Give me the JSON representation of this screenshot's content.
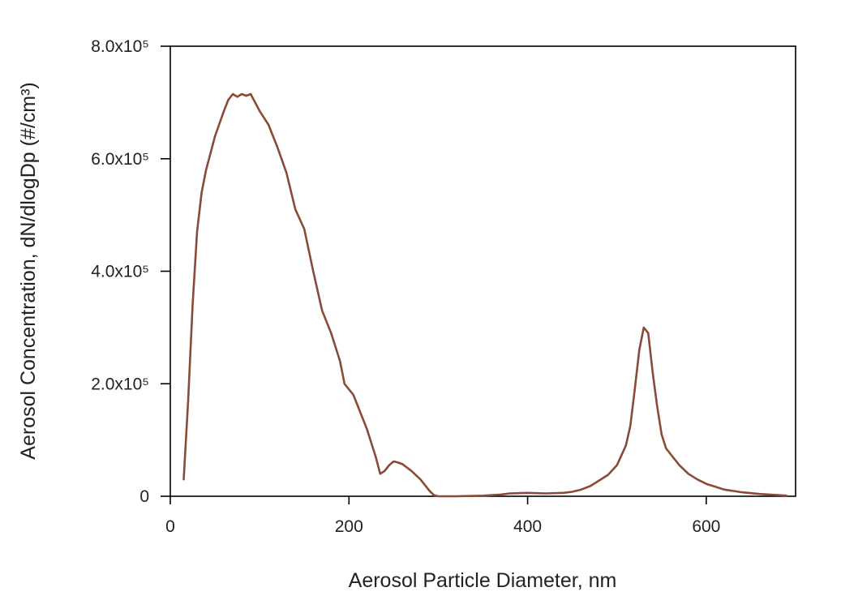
{
  "chart_data": {
    "type": "line",
    "title": "",
    "xlabel": "Aerosol Particle Diameter, nm",
    "ylabel": "Aerosol Concentration, dN/dlogDp (#/cm³)",
    "xlim": [
      0,
      700
    ],
    "ylim": [
      0,
      800000
    ],
    "x_ticks": [
      {
        "value": 0,
        "label": "0"
      },
      {
        "value": 200,
        "label": "200"
      },
      {
        "value": 400,
        "label": "400"
      },
      {
        "value": 600,
        "label": "600"
      }
    ],
    "y_ticks": [
      {
        "value": 0,
        "label": "0"
      },
      {
        "value": 200000,
        "label": "2.0x10⁵"
      },
      {
        "value": 400000,
        "label": "4.0x10⁵"
      },
      {
        "value": 600000,
        "label": "6.0x10⁵"
      },
      {
        "value": 800000,
        "label": "8.0x10⁵"
      }
    ],
    "grid": false,
    "legend": "none",
    "colors": {
      "series": "#8a4a38"
    },
    "series": [
      {
        "x": [
          15,
          20,
          25,
          30,
          35,
          40,
          50,
          60,
          65,
          70,
          75,
          80,
          85,
          90,
          95,
          100,
          110,
          120,
          130,
          140,
          150,
          160,
          170,
          180,
          190,
          195,
          200,
          205,
          210,
          220,
          230,
          235,
          240,
          245,
          250,
          255,
          260,
          270,
          280,
          290,
          295,
          300,
          320,
          350,
          370,
          380,
          400,
          420,
          440,
          450,
          460,
          470,
          480,
          490,
          500,
          510,
          515,
          520,
          525,
          530,
          535,
          540,
          545,
          550,
          555,
          560,
          565,
          570,
          580,
          590,
          600,
          620,
          640,
          660,
          680,
          690
        ],
        "y": [
          30000,
          170000,
          340000,
          470000,
          540000,
          580000,
          640000,
          685000,
          705000,
          715000,
          710000,
          715000,
          712000,
          715000,
          700000,
          685000,
          660000,
          620000,
          575000,
          510000,
          475000,
          400000,
          330000,
          290000,
          240000,
          200000,
          190000,
          180000,
          160000,
          120000,
          70000,
          40000,
          45000,
          55000,
          62000,
          60000,
          57000,
          45000,
          30000,
          10000,
          2000,
          0,
          0,
          1000,
          3000,
          5000,
          6000,
          5000,
          6000,
          8000,
          12000,
          18000,
          28000,
          38000,
          55000,
          90000,
          125000,
          190000,
          260000,
          300000,
          290000,
          220000,
          160000,
          110000,
          85000,
          75000,
          65000,
          55000,
          40000,
          30000,
          22000,
          12000,
          7000,
          4000,
          2000,
          1000
        ]
      }
    ]
  }
}
